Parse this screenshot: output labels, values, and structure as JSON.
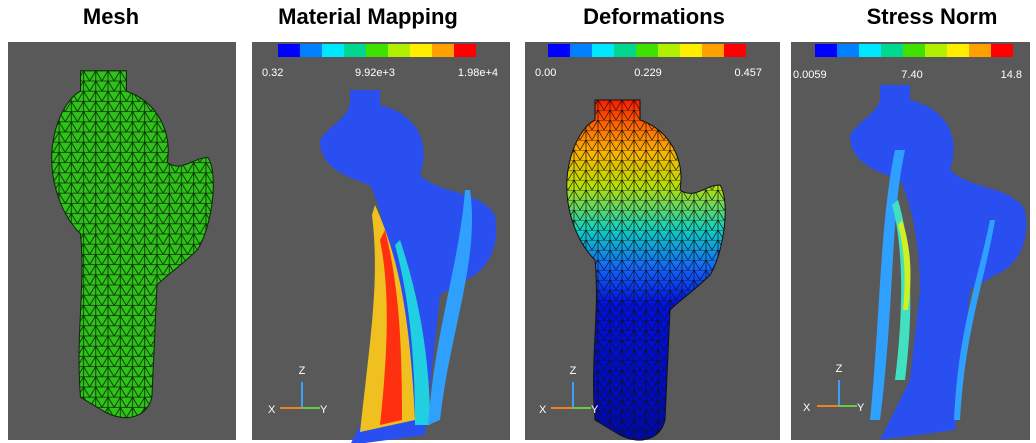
{
  "panels": [
    {
      "title": "Mesh"
    },
    {
      "title": "Material Mapping",
      "colorbar": {
        "labels": [
          "0.32",
          "9.92e+3",
          "1.98e+4"
        ]
      },
      "axes": {
        "z": "Z",
        "x": "X",
        "y": "Y"
      }
    },
    {
      "title": "Deformations",
      "colorbar": {
        "labels": [
          "0.00",
          "0.229",
          "0.457"
        ]
      },
      "axes": {
        "z": "Z",
        "x": "X",
        "y": "Y"
      }
    },
    {
      "title": "Stress Norm",
      "colorbar": {
        "labels": [
          "0.0059",
          "7.40",
          "14.8"
        ]
      },
      "axes": {
        "z": "Z",
        "x": "X",
        "y": "Y"
      }
    }
  ]
}
